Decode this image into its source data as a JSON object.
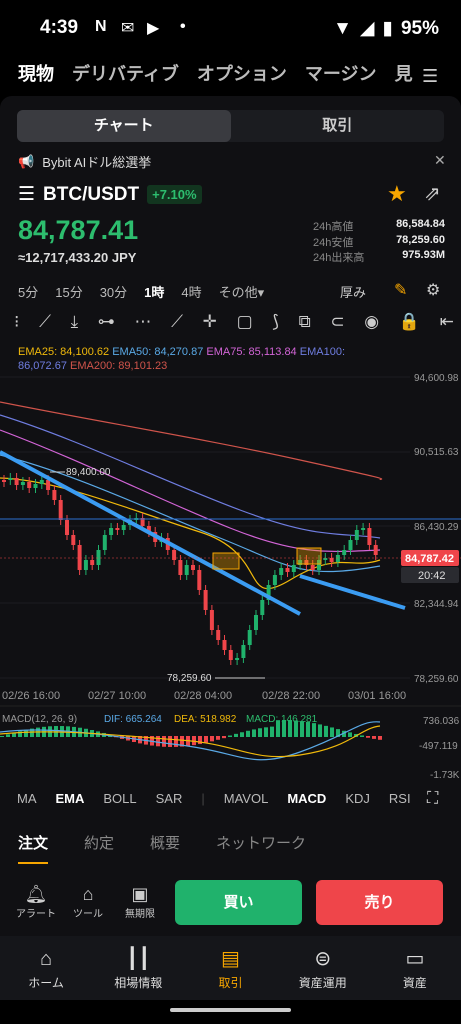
{
  "status": {
    "time": "4:39",
    "battery": "95%"
  },
  "topnav": [
    "現物",
    "デリバティブ",
    "オプション",
    "マージン",
    "見"
  ],
  "segment": {
    "chart": "チャート",
    "trade": "取引"
  },
  "announcement": "Bybit AIドル総選挙",
  "pair": {
    "name": "BTC/USDT",
    "change": "+7.10%"
  },
  "price": "84,787.41",
  "price_jpy": "≈12,717,433.20 JPY",
  "stats": [
    {
      "k": "24h高値",
      "v": "86,584.84"
    },
    {
      "k": "24h安値",
      "v": "78,259.60"
    },
    {
      "k": "24h出来高",
      "v": "975.93M"
    }
  ],
  "intervals": {
    "items": [
      "5分",
      "15分",
      "30分",
      "1時",
      "4時",
      "その他▾"
    ],
    "active": "1時",
    "depth": "厚み"
  },
  "ema": [
    {
      "label": "EMA25: 84,100.62",
      "color": "#f0b90b"
    },
    {
      "label": "EMA50: 84,270.87",
      "color": "#5aa9e6"
    },
    {
      "label": "EMA75: 85,113.84",
      "color": "#d264d6"
    },
    {
      "label": "EMA100:",
      "color": "#6f7de0"
    },
    {
      "label": "86,072.67",
      "color": "#6f7de0"
    },
    {
      "label": "EMA200: 89,101.23",
      "color": "#d0544b"
    }
  ],
  "chart_data": {
    "type": "candlestick",
    "y_ticks": [
      "94,600.98",
      "90,515.63",
      "86,430.29",
      "82,344.94",
      "78,259.60"
    ],
    "x_ticks": [
      "02/26 16:00",
      "02/27 10:00",
      "02/28 04:00",
      "02/28 22:00",
      "03/01 16:00"
    ],
    "annotations": {
      "high": "89,400.00",
      "low": "78,259.60"
    },
    "current_price": "84,787.42",
    "countdown": "20:42",
    "macd": {
      "label": "MACD(12, 26, 9)",
      "dif": "DIF: 665.264",
      "dea": "DEA: 518.982",
      "macd": "MACD: 146.281",
      "ticks": [
        "736.036",
        "-497.119",
        "-1.73K"
      ]
    }
  },
  "indicators": {
    "items": [
      "MA",
      "EMA",
      "BOLL",
      "SAR",
      "MAVOL",
      "MACD",
      "KDJ",
      "RSI"
    ],
    "active": [
      "EMA",
      "MACD"
    ]
  },
  "lowertabs": {
    "items": [
      "注文",
      "約定",
      "概要",
      "ネットワーク"
    ],
    "active": "注文"
  },
  "actions": {
    "alert": "アラート",
    "tool": "ツール",
    "unlimited": "無期限",
    "buy": "買い",
    "sell": "売り"
  },
  "bottomnav": [
    {
      "label": "ホーム",
      "icon": "home-icon"
    },
    {
      "label": "相場情報",
      "icon": "candles-icon"
    },
    {
      "label": "取引",
      "icon": "trade-icon"
    },
    {
      "label": "資産運用",
      "icon": "yen-icon"
    },
    {
      "label": "資産",
      "icon": "wallet-icon"
    }
  ]
}
